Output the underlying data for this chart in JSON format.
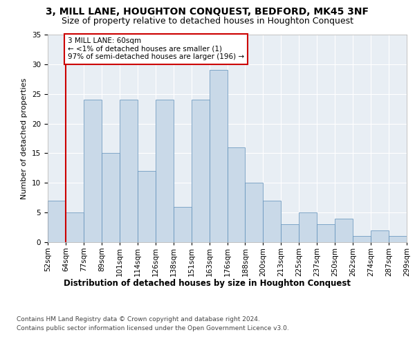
{
  "title": "3, MILL LANE, HOUGHTON CONQUEST, BEDFORD, MK45 3NF",
  "subtitle": "Size of property relative to detached houses in Houghton Conquest",
  "xlabel": "Distribution of detached houses by size in Houghton Conquest",
  "ylabel": "Number of detached properties",
  "bar_values": [
    7,
    5,
    24,
    15,
    24,
    12,
    24,
    6,
    24,
    29,
    16,
    10,
    7,
    3,
    5,
    3,
    4,
    1,
    2,
    1
  ],
  "bin_labels": [
    "52sqm",
    "64sqm",
    "77sqm",
    "89sqm",
    "101sqm",
    "114sqm",
    "126sqm",
    "138sqm",
    "151sqm",
    "163sqm",
    "176sqm",
    "188sqm",
    "200sqm",
    "213sqm",
    "225sqm",
    "237sqm",
    "250sqm",
    "262sqm",
    "274sqm",
    "287sqm",
    "299sqm"
  ],
  "bar_color": "#c9d9e8",
  "bar_edge_color": "#5b8db8",
  "annotation_box_text": "3 MILL LANE: 60sqm\n← <1% of detached houses are smaller (1)\n97% of semi-detached houses are larger (196) →",
  "vline_color": "#cc0000",
  "ylim": [
    0,
    35
  ],
  "yticks": [
    0,
    5,
    10,
    15,
    20,
    25,
    30,
    35
  ],
  "plot_bg_color": "#e8eef4",
  "footer1": "Contains HM Land Registry data © Crown copyright and database right 2024.",
  "footer2": "Contains public sector information licensed under the Open Government Licence v3.0.",
  "title_fontsize": 10,
  "subtitle_fontsize": 9,
  "xlabel_fontsize": 8.5,
  "ylabel_fontsize": 8,
  "tick_fontsize": 7.5,
  "annotation_fontsize": 7.5,
  "footer_fontsize": 6.5
}
